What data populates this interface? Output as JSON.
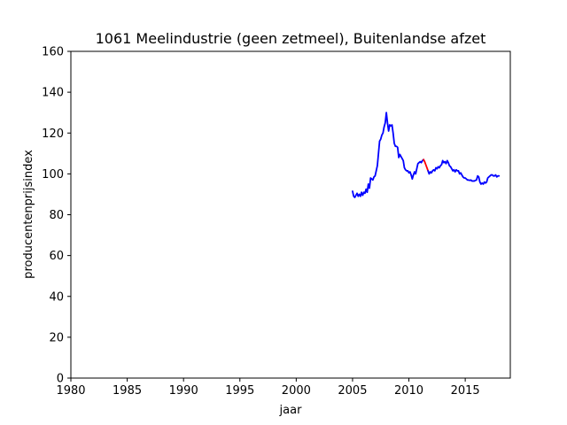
{
  "chart_data": {
    "type": "line",
    "title": "1061 Meelindustrie (geen zetmeel), Buitenlandse afzet",
    "xlabel": "jaar",
    "ylabel": "producentenprijsindex",
    "xlim": [
      1980,
      2019
    ],
    "ylim": [
      0,
      160
    ],
    "xticks": [
      1980,
      1985,
      1990,
      1995,
      2000,
      2005,
      2010,
      2015
    ],
    "yticks": [
      0,
      20,
      40,
      60,
      80,
      100,
      120,
      140,
      160
    ],
    "grid": false,
    "series": [
      {
        "color": "#0000ff",
        "points": [
          [
            2005.0,
            91.5
          ],
          [
            2005.1,
            89.0
          ],
          [
            2005.2,
            88.5
          ],
          [
            2005.3,
            89.5
          ],
          [
            2005.4,
            90.5
          ],
          [
            2005.5,
            89.0
          ],
          [
            2005.6,
            90.0
          ],
          [
            2005.7,
            89.0
          ],
          [
            2005.8,
            91.0
          ],
          [
            2005.9,
            89.5
          ],
          [
            2006.0,
            91.0
          ],
          [
            2006.1,
            90.5
          ],
          [
            2006.2,
            92.5
          ],
          [
            2006.3,
            91.0
          ],
          [
            2006.4,
            95.0
          ],
          [
            2006.5,
            93.0
          ],
          [
            2006.6,
            98.0
          ],
          [
            2006.7,
            97.5
          ],
          [
            2006.8,
            97.0
          ],
          [
            2006.9,
            98.5
          ],
          [
            2007.0,
            99.0
          ],
          [
            2007.1,
            101.5
          ],
          [
            2007.2,
            104.0
          ],
          [
            2007.3,
            110.0
          ],
          [
            2007.4,
            116.0
          ],
          [
            2007.5,
            117.0
          ],
          [
            2007.6,
            119.0
          ],
          [
            2007.7,
            120.0
          ],
          [
            2007.8,
            123.0
          ],
          [
            2007.9,
            125.0
          ],
          [
            2008.0,
            130.0
          ],
          [
            2008.1,
            125.0
          ],
          [
            2008.2,
            121.0
          ],
          [
            2008.3,
            124.0
          ],
          [
            2008.4,
            123.5
          ],
          [
            2008.5,
            124.0
          ],
          [
            2008.6,
            120.0
          ],
          [
            2008.7,
            115.0
          ],
          [
            2008.8,
            113.5
          ],
          [
            2008.9,
            113.5
          ],
          [
            2009.0,
            113.0
          ],
          [
            2009.1,
            108.0
          ],
          [
            2009.2,
            109.5
          ],
          [
            2009.3,
            108.5
          ],
          [
            2009.4,
            107.5
          ],
          [
            2009.5,
            106.5
          ],
          [
            2009.6,
            103.0
          ],
          [
            2009.7,
            102.0
          ],
          [
            2009.8,
            101.5
          ],
          [
            2009.9,
            101.5
          ],
          [
            2010.0,
            100.5
          ],
          [
            2010.1,
            101.0
          ],
          [
            2010.2,
            99.5
          ],
          [
            2010.3,
            97.5
          ],
          [
            2010.4,
            99.5
          ],
          [
            2010.5,
            101.0
          ],
          [
            2010.6,
            100.0
          ],
          [
            2010.7,
            102.5
          ],
          [
            2010.8,
            105.0
          ],
          [
            2010.9,
            105.5
          ],
          [
            2011.0,
            106.0
          ],
          [
            2011.1,
            105.5
          ],
          [
            2011.2,
            106.5
          ],
          [
            2011.3,
            107.0
          ]
        ]
      },
      {
        "color": "#ff0000",
        "points": [
          [
            2011.3,
            107.0
          ],
          [
            2011.4,
            106.0
          ],
          [
            2011.5,
            104.5
          ],
          [
            2011.6,
            103.0
          ],
          [
            2011.7,
            101.5
          ]
        ]
      },
      {
        "color": "#0000ff",
        "points": [
          [
            2011.7,
            101.5
          ],
          [
            2011.8,
            100.0
          ],
          [
            2011.9,
            101.0
          ],
          [
            2012.0,
            100.5
          ],
          [
            2012.1,
            101.5
          ],
          [
            2012.2,
            102.0
          ],
          [
            2012.3,
            101.5
          ],
          [
            2012.4,
            103.0
          ],
          [
            2012.5,
            102.5
          ],
          [
            2012.6,
            103.5
          ],
          [
            2012.7,
            103.0
          ],
          [
            2012.8,
            104.0
          ],
          [
            2012.9,
            104.5
          ],
          [
            2013.0,
            106.5
          ],
          [
            2013.1,
            105.5
          ],
          [
            2013.2,
            106.0
          ],
          [
            2013.3,
            105.0
          ],
          [
            2013.4,
            106.5
          ],
          [
            2013.5,
            105.5
          ],
          [
            2013.6,
            104.0
          ],
          [
            2013.7,
            103.5
          ],
          [
            2013.8,
            102.5
          ],
          [
            2013.9,
            101.5
          ],
          [
            2014.0,
            102.0
          ],
          [
            2014.1,
            101.0
          ],
          [
            2014.2,
            102.0
          ],
          [
            2014.3,
            101.5
          ],
          [
            2014.4,
            101.5
          ],
          [
            2014.5,
            100.0
          ],
          [
            2014.6,
            100.5
          ],
          [
            2014.7,
            99.5
          ],
          [
            2014.8,
            98.5
          ],
          [
            2014.9,
            98.0
          ],
          [
            2015.0,
            98.0
          ],
          [
            2015.1,
            97.5
          ],
          [
            2015.2,
            97.0
          ],
          [
            2015.3,
            97.0
          ],
          [
            2015.4,
            96.8
          ],
          [
            2015.5,
            97.0
          ],
          [
            2015.6,
            96.5
          ],
          [
            2015.7,
            96.5
          ],
          [
            2015.8,
            96.5
          ],
          [
            2015.9,
            96.8
          ],
          [
            2016.0,
            97.0
          ],
          [
            2016.1,
            99.0
          ],
          [
            2016.2,
            98.5
          ],
          [
            2016.3,
            96.0
          ],
          [
            2016.4,
            95.0
          ],
          [
            2016.5,
            95.5
          ],
          [
            2016.6,
            95.0
          ],
          [
            2016.7,
            96.0
          ],
          [
            2016.8,
            95.5
          ],
          [
            2016.9,
            96.0
          ],
          [
            2017.0,
            98.0
          ],
          [
            2017.1,
            98.5
          ],
          [
            2017.2,
            99.0
          ],
          [
            2017.3,
            99.5
          ],
          [
            2017.4,
            99.5
          ],
          [
            2017.5,
            99.0
          ],
          [
            2017.6,
            99.0
          ],
          [
            2017.7,
            99.5
          ],
          [
            2017.8,
            98.5
          ],
          [
            2017.9,
            99.0
          ],
          [
            2018.0,
            99.0
          ]
        ]
      }
    ]
  }
}
